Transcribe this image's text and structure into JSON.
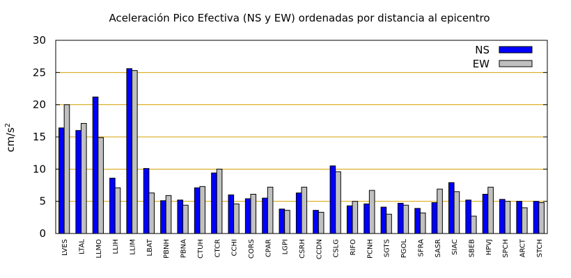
{
  "chart_data": {
    "type": "bar",
    "title": "Aceleración Pico Efectiva (NS y EW) ordenadas por distancia al epicentro",
    "ylabel": "cm/s",
    "ylabel_sup": "2",
    "xlabel": "",
    "ylim": [
      0,
      30
    ],
    "yticks": [
      0,
      5,
      10,
      15,
      20,
      25,
      30
    ],
    "grid": true,
    "legend_position": "top-right",
    "categories": [
      "LVES",
      "LTAL",
      "LLMO",
      "LLIH",
      "LLIM",
      "LBAT",
      "PBNH",
      "PBNA",
      "CTUH",
      "CTCR",
      "CCHI",
      "CORS",
      "CPAR",
      "LGPI",
      "CSRH",
      "CCDN",
      "CSLG",
      "RIFO",
      "PCNH",
      "SGTS",
      "PGOL",
      "SFRA",
      "SASR",
      "SIAC",
      "SBEB",
      "HPVJ",
      "SPCH",
      "ARCT",
      "STCH"
    ],
    "series": [
      {
        "name": "NS",
        "color": "#0000ff",
        "values": [
          16.4,
          16.0,
          21.2,
          8.6,
          25.6,
          10.1,
          5.1,
          5.2,
          7.1,
          9.4,
          6.0,
          5.4,
          5.5,
          3.8,
          6.3,
          3.6,
          10.5,
          4.3,
          4.6,
          4.1,
          4.7,
          3.9,
          4.8,
          7.9,
          5.2,
          6.1,
          5.3,
          5.0,
          5.0
        ]
      },
      {
        "name": "EW",
        "color": "#c0c0c0",
        "values": [
          20.0,
          17.1,
          14.9,
          7.1,
          25.3,
          6.3,
          5.9,
          4.4,
          7.3,
          10.0,
          4.6,
          6.1,
          7.2,
          3.6,
          7.2,
          3.3,
          9.6,
          5.0,
          6.7,
          3.0,
          4.4,
          3.2,
          6.9,
          6.5,
          2.7,
          7.2,
          5.0,
          4.0,
          4.8
        ]
      }
    ],
    "colors": {
      "grid": "#d4a000",
      "axis": "#000000"
    }
  }
}
